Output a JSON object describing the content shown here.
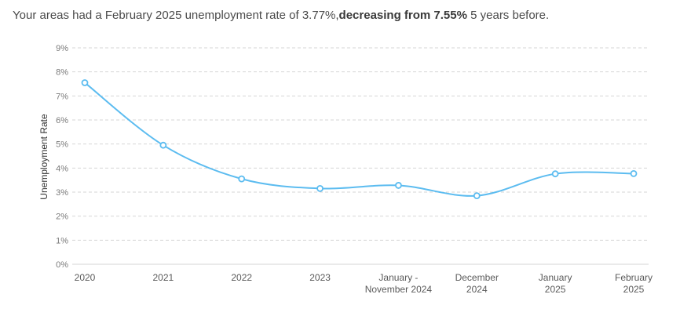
{
  "headline": {
    "prefix": "Your areas had a February 2025 unemployment rate of 3.77%,",
    "emphasis": "decreasing from 7.55%",
    "suffix": " 5 years before."
  },
  "colors": {
    "line": "#5cbcf0",
    "grid": "#d6d6d6"
  },
  "chart_data": {
    "type": "line",
    "title": "",
    "xlabel": "",
    "ylabel": "Unemployment Rate",
    "ylim": [
      0,
      9
    ],
    "yticks": [
      "0%",
      "1%",
      "2%",
      "3%",
      "4%",
      "5%",
      "6%",
      "7%",
      "8%",
      "9%"
    ],
    "grid": true,
    "categories": [
      [
        "2020"
      ],
      [
        "2021"
      ],
      [
        "2022"
      ],
      [
        "2023"
      ],
      [
        "January -",
        "November 2024"
      ],
      [
        "December",
        "2024"
      ],
      [
        "January",
        "2025"
      ],
      [
        "February",
        "2025"
      ]
    ],
    "series": [
      {
        "name": "",
        "values": [
          7.55,
          4.95,
          3.55,
          3.15,
          3.28,
          2.85,
          3.76,
          3.77
        ]
      }
    ]
  }
}
